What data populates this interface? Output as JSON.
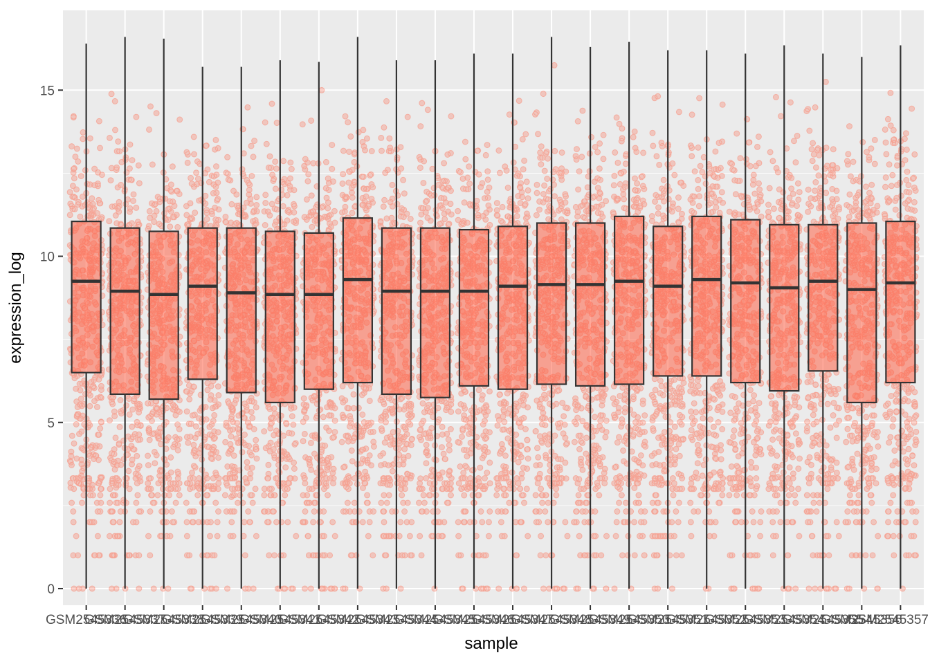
{
  "chart_data": {
    "type": "boxplot",
    "overlay": "jittered points (semi-transparent)",
    "xlabel": "sample",
    "ylabel": "expression_log",
    "ylim": [
      -0.5,
      17.4
    ],
    "yticks": [
      0,
      5,
      10,
      15
    ],
    "grid": true,
    "background": "#ebebeb",
    "point_color": "#ff6347",
    "box_fill": "#ff6347",
    "line_color": "#333333",
    "categories": [
      "GSM2545336",
      "GSM2545337",
      "GSM2545338",
      "GSM2545339",
      "GSM2545340",
      "GSM2545341",
      "GSM2545342",
      "GSM2545343",
      "GSM2545344",
      "GSM2545345",
      "GSM2545346",
      "GSM2545347",
      "GSM2545348",
      "GSM2545349",
      "GSM2545350",
      "GSM2545351",
      "GSM2545352",
      "GSM2545353",
      "GSM2545354",
      "GSM2545355",
      "GSM2545356",
      "GSM2545357"
    ],
    "boxes": [
      {
        "min": 0,
        "q1": 6.5,
        "median": 9.25,
        "q3": 11.05,
        "max": 16.4
      },
      {
        "min": 0,
        "q1": 5.85,
        "median": 8.95,
        "q3": 10.85,
        "max": 16.6
      },
      {
        "min": 0,
        "q1": 5.7,
        "median": 8.85,
        "q3": 10.75,
        "max": 16.55
      },
      {
        "min": 0,
        "q1": 6.3,
        "median": 9.1,
        "q3": 10.85,
        "max": 15.7
      },
      {
        "min": 0,
        "q1": 5.9,
        "median": 8.9,
        "q3": 10.85,
        "max": 15.7
      },
      {
        "min": 0,
        "q1": 5.6,
        "median": 8.85,
        "q3": 10.75,
        "max": 15.9
      },
      {
        "min": 0,
        "q1": 6.0,
        "median": 8.85,
        "q3": 10.7,
        "max": 15.85
      },
      {
        "min": 0,
        "q1": 6.2,
        "median": 9.3,
        "q3": 11.15,
        "max": 16.6
      },
      {
        "min": 0,
        "q1": 5.85,
        "median": 8.95,
        "q3": 10.85,
        "max": 15.9
      },
      {
        "min": 0,
        "q1": 5.75,
        "median": 8.95,
        "q3": 10.85,
        "max": 15.9
      },
      {
        "min": 0,
        "q1": 6.1,
        "median": 8.95,
        "q3": 10.8,
        "max": 16.1
      },
      {
        "min": 0,
        "q1": 6.0,
        "median": 9.1,
        "q3": 10.9,
        "max": 16.1
      },
      {
        "min": 0,
        "q1": 6.15,
        "median": 9.15,
        "q3": 11.0,
        "max": 16.6
      },
      {
        "min": 0,
        "q1": 6.1,
        "median": 9.15,
        "q3": 11.0,
        "max": 16.3
      },
      {
        "min": 0,
        "q1": 6.15,
        "median": 9.25,
        "q3": 11.2,
        "max": 16.45
      },
      {
        "min": 0,
        "q1": 6.4,
        "median": 9.1,
        "q3": 10.9,
        "max": 16.2
      },
      {
        "min": 0,
        "q1": 6.4,
        "median": 9.3,
        "q3": 11.2,
        "max": 16.2
      },
      {
        "min": 0,
        "q1": 6.2,
        "median": 9.2,
        "q3": 11.1,
        "max": 16.1
      },
      {
        "min": 0,
        "q1": 5.95,
        "median": 9.05,
        "q3": 10.95,
        "max": 16.35
      },
      {
        "min": 0,
        "q1": 6.55,
        "median": 9.25,
        "q3": 10.95,
        "max": 16.1
      },
      {
        "min": 0,
        "q1": 5.6,
        "median": 9.0,
        "q3": 11.0,
        "max": 16.0
      },
      {
        "min": 0,
        "q1": 6.2,
        "median": 9.2,
        "q3": 11.05,
        "max": 16.35
      }
    ]
  }
}
